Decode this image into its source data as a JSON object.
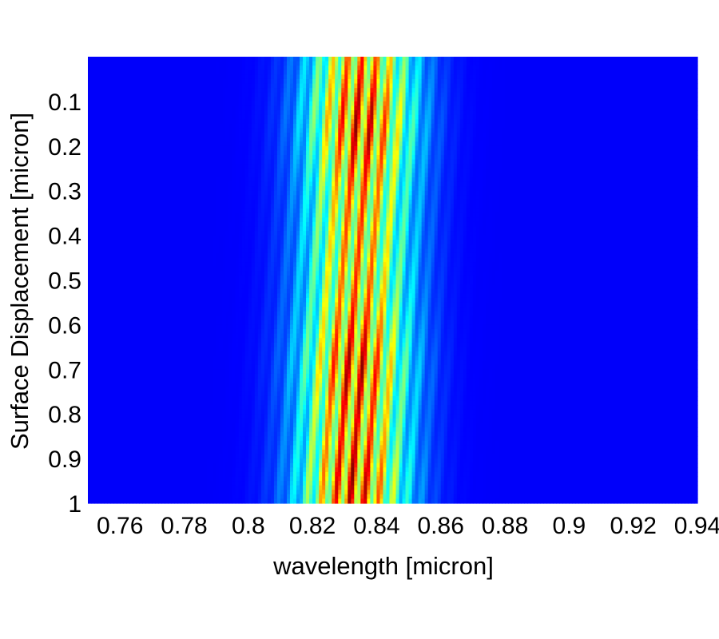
{
  "chart_data": {
    "type": "heatmap",
    "title": "",
    "xlabel": "wavelength [micron]",
    "ylabel": "Surface Displacement [micron]",
    "xlim": [
      0.75,
      0.94
    ],
    "ylim": [
      0.0,
      1.0
    ],
    "y_reversed": true,
    "colormap": "jet",
    "x_ticks": [
      0.76,
      0.78,
      0.8,
      0.82,
      0.84,
      0.86,
      0.88,
      0.9,
      0.92,
      0.94
    ],
    "x_tick_labels": [
      "0.76",
      "0.78",
      "0.8",
      "0.82",
      "0.84",
      "0.86",
      "0.88",
      "0.9",
      "0.92",
      "0.94"
    ],
    "y_ticks": [
      0.1,
      0.2,
      0.3,
      0.4,
      0.5,
      0.6,
      0.7,
      0.8,
      0.9,
      1.0
    ],
    "y_tick_labels": [
      "0.1",
      "0.2",
      "0.3",
      "0.4",
      "0.5",
      "0.6",
      "0.7",
      "0.8",
      "0.9",
      "1"
    ],
    "fringe_band": {
      "center_wavelength_at_top": 0.8355,
      "center_wavelength_at_bottom": 0.8325,
      "envelope_fwhm_approx": 0.028,
      "fringe_spacing": 0.0045,
      "peak_displacements": [
        0.15,
        0.7,
        0.95
      ]
    }
  }
}
